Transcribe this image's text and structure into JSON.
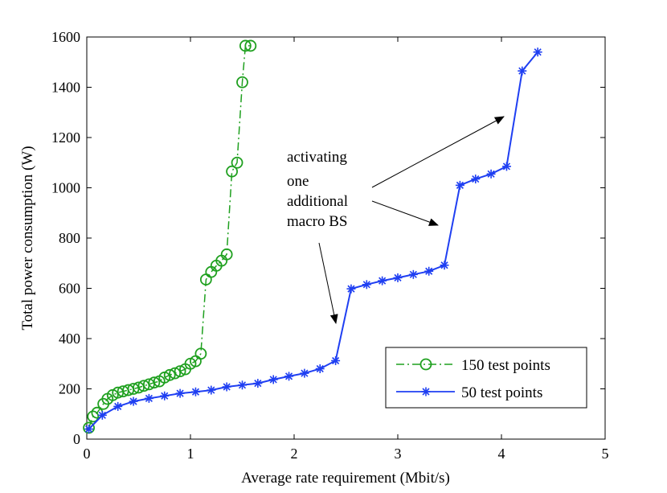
{
  "chart_data": {
    "type": "line",
    "title": "",
    "xlabel": "Average rate requirement (Mbit/s)",
    "ylabel": "Total power consumption (W)",
    "xlim": [
      0,
      5
    ],
    "ylim": [
      0,
      1600
    ],
    "xticks": [
      0,
      1,
      2,
      3,
      4,
      5
    ],
    "yticks": [
      0,
      200,
      400,
      600,
      800,
      1000,
      1200,
      1400,
      1600
    ],
    "grid": false,
    "legend_position": "bottom-right",
    "series": [
      {
        "name": "150 test points",
        "color": "#1fa01f",
        "marker": "circle",
        "line_style": "dash-dot",
        "x": [
          0.02,
          0.06,
          0.1,
          0.16,
          0.2,
          0.25,
          0.3,
          0.35,
          0.4,
          0.45,
          0.5,
          0.55,
          0.6,
          0.65,
          0.7,
          0.75,
          0.8,
          0.85,
          0.9,
          0.95,
          1.0,
          1.05,
          1.1,
          1.15,
          1.2,
          1.25,
          1.3,
          1.35,
          1.4,
          1.45,
          1.5,
          1.53,
          1.58
        ],
        "y": [
          45,
          90,
          105,
          140,
          160,
          175,
          185,
          190,
          195,
          200,
          205,
          212,
          218,
          225,
          230,
          245,
          255,
          262,
          270,
          278,
          300,
          310,
          340,
          635,
          665,
          690,
          710,
          735,
          1065,
          1100,
          1420,
          1565,
          1565
        ]
      },
      {
        "name": "50 test points",
        "color": "#1f3ff2",
        "marker": "star",
        "line_style": "solid",
        "x": [
          0.02,
          0.15,
          0.3,
          0.45,
          0.6,
          0.75,
          0.9,
          1.05,
          1.2,
          1.35,
          1.5,
          1.65,
          1.8,
          1.95,
          2.1,
          2.25,
          2.4,
          2.55,
          2.7,
          2.85,
          3.0,
          3.15,
          3.3,
          3.45,
          3.6,
          3.75,
          3.9,
          4.05,
          4.2,
          4.35
        ],
        "y": [
          40,
          95,
          130,
          150,
          162,
          172,
          182,
          188,
          195,
          208,
          215,
          222,
          237,
          250,
          262,
          280,
          312,
          598,
          615,
          630,
          642,
          655,
          668,
          692,
          1010,
          1035,
          1055,
          1085,
          1465,
          1540
        ]
      }
    ],
    "annotations": [
      {
        "lines": [
          "activating",
          "one",
          "additional",
          "macro BS"
        ]
      }
    ]
  }
}
